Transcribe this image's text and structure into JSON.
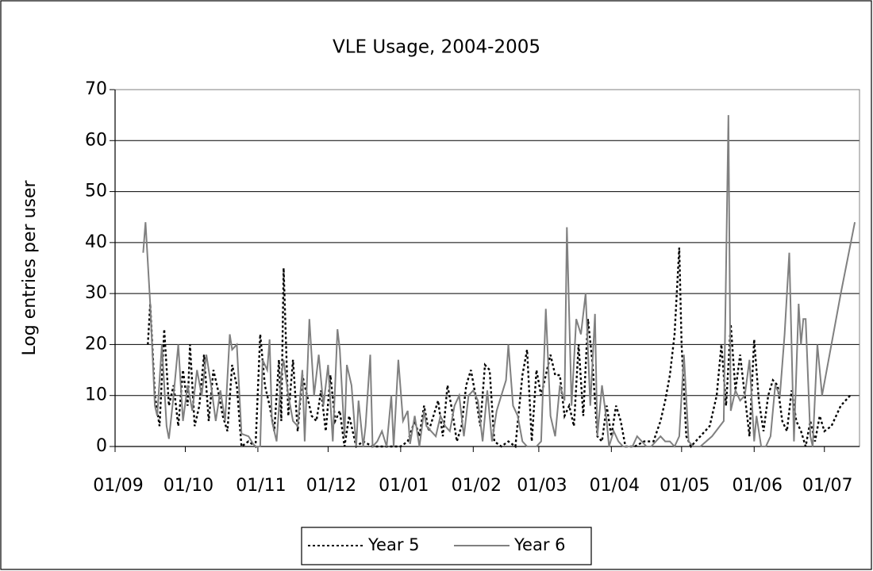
{
  "chart_data": {
    "type": "line",
    "title": "VLE Usage, 2004-2005",
    "y_label": "Log entries per user",
    "xlim": [
      "01/09",
      "16/07"
    ],
    "xticks": [
      "01/09",
      "01/10",
      "01/11",
      "01/12",
      "01/01",
      "01/02",
      "01/03",
      "01/04",
      "01/05",
      "01/06",
      "01/07"
    ],
    "ylim": [
      0,
      70
    ],
    "yticks": [
      0,
      10,
      20,
      30,
      40,
      50,
      60,
      70
    ],
    "grid": true,
    "legend": "bottom",
    "series": [
      {
        "name": "Year 5",
        "color": "#000000",
        "dash": "dotted",
        "x": [
          "15/09",
          "16/09",
          "18/09",
          "20/09",
          "22/09",
          "24/09",
          "26/09",
          "28/09",
          "30/09",
          "02/10",
          "03/10",
          "05/10",
          "07/10",
          "09/10",
          "11/10",
          "13/10",
          "15/10",
          "17/10",
          "19/10",
          "21/10",
          "23/10",
          "25/10",
          "28/10",
          "31/10",
          "02/11",
          "04/11",
          "06/11",
          "08/11",
          "10/11",
          "11/11",
          "12/11",
          "14/11",
          "16/11",
          "18/11",
          "20/11",
          "22/11",
          "24/11",
          "26/11",
          "28/11",
          "30/11",
          "02/12",
          "04/12",
          "06/12",
          "08/12",
          "10/12",
          "13/12",
          "16/12",
          "20/12",
          "24/12",
          "28/12",
          "01/01",
          "04/01",
          "07/01",
          "09/01",
          "11/01",
          "13/01",
          "15/01",
          "17/01",
          "19/01",
          "21/01",
          "23/01",
          "25/01",
          "27/01",
          "29/01",
          "31/01",
          "02/02",
          "04/02",
          "06/02",
          "08/02",
          "10/02",
          "13/02",
          "16/02",
          "19/02",
          "22/02",
          "24/02",
          "26/02",
          "28/02",
          "02/03",
          "04/03",
          "06/03",
          "08/03",
          "10/03",
          "12/03",
          "14/03",
          "16/03",
          "18/03",
          "20/03",
          "22/03",
          "24/03",
          "26/03",
          "28/03",
          "30/03",
          "01/04",
          "03/04",
          "05/04",
          "07/04",
          "11/04",
          "15/04",
          "19/04",
          "22/04",
          "24/04",
          "26/04",
          "28/04",
          "30/04",
          "01/05",
          "03/05",
          "05/05",
          "09/05",
          "13/05",
          "16/05",
          "18/05",
          "20/05",
          "22/05",
          "24/05",
          "26/05",
          "28/05",
          "30/05",
          "01/06",
          "03/06",
          "05/06",
          "07/06",
          "09/06",
          "11/06",
          "13/06",
          "15/06",
          "17/06",
          "19/06",
          "21/06",
          "23/06",
          "25/06",
          "27/06",
          "29/06",
          "01/07",
          "04/07",
          "08/07",
          "12/07"
        ],
        "values": [
          20,
          28,
          10,
          4,
          23,
          8,
          12,
          4,
          15,
          8,
          20,
          4,
          8,
          18,
          5,
          15,
          11,
          6,
          3,
          16,
          12,
          0,
          1,
          0,
          22,
          12,
          8,
          3,
          17,
          5,
          35,
          6,
          17,
          3,
          14,
          10,
          6,
          5,
          11,
          3,
          14,
          5,
          7,
          0,
          6,
          0,
          1,
          0,
          0,
          0,
          0,
          1,
          5,
          2,
          8,
          3,
          6,
          9,
          2,
          12,
          7,
          1,
          4,
          12,
          15,
          10,
          4,
          16,
          15,
          1,
          0,
          1,
          0,
          14,
          19,
          1,
          15,
          10,
          14,
          18,
          14,
          14,
          6,
          8,
          4,
          20,
          6,
          25,
          16,
          2,
          1,
          8,
          2,
          8,
          5,
          0,
          0,
          1,
          1,
          5,
          9,
          14,
          22,
          39,
          20,
          2,
          0,
          2,
          4,
          10,
          20,
          8,
          24,
          11,
          18,
          10,
          2,
          21,
          9,
          3,
          10,
          13,
          12,
          5,
          3,
          11,
          5,
          3,
          0,
          5,
          1,
          6,
          3,
          4,
          8,
          10
        ]
      },
      {
        "name": "Year 6",
        "color": "#808080",
        "dash": "solid",
        "x": [
          "13/09",
          "14/09",
          "16/09",
          "18/09",
          "19/09",
          "21/09",
          "23/09",
          "24/09",
          "26/09",
          "28/09",
          "30/09",
          "02/10",
          "04/10",
          "06/10",
          "08/10",
          "10/10",
          "12/10",
          "14/10",
          "16/10",
          "18/10",
          "20/10",
          "21/10",
          "23/10",
          "25/10",
          "28/10",
          "30/10",
          "31/10",
          "02/11",
          "03/11",
          "05/11",
          "06/11",
          "07/11",
          "09/11",
          "11/11",
          "12/11",
          "14/11",
          "16/11",
          "18/11",
          "20/11",
          "21/11",
          "23/11",
          "25/11",
          "27/11",
          "29/11",
          "01/12",
          "03/12",
          "05/12",
          "06/12",
          "08/12",
          "09/12",
          "11/12",
          "13/12",
          "14/12",
          "16/12",
          "17/12",
          "19/12",
          "20/12",
          "22/12",
          "24/12",
          "26/12",
          "28/12",
          "29/12",
          "31/12",
          "02/01",
          "04/01",
          "05/01",
          "07/01",
          "09/01",
          "11/01",
          "12/01",
          "14/01",
          "16/01",
          "18/01",
          "20/01",
          "22/01",
          "24/01",
          "26/01",
          "28/01",
          "30/01",
          "01/02",
          "03/02",
          "05/02",
          "07/02",
          "09/02",
          "11/02",
          "13/02",
          "15/02",
          "16/02",
          "18/02",
          "20/02",
          "22/02",
          "24/02",
          "26/02",
          "28/02",
          "02/03",
          "04/03",
          "06/03",
          "08/03",
          "10/03",
          "12/03",
          "13/03",
          "15/03",
          "17/03",
          "19/03",
          "21/03",
          "23/03",
          "25/03",
          "26/03",
          "28/03",
          "30/03",
          "31/03",
          "02/04",
          "04/04",
          "06/04",
          "08/04",
          "10/04",
          "12/04",
          "14/04",
          "16/04",
          "18/04",
          "20/04",
          "22/04",
          "24/04",
          "26/04",
          "28/04",
          "30/04",
          "02/05",
          "04/05",
          "06/05",
          "09/05",
          "14/05",
          "19/05",
          "21/05",
          "22/05",
          "24/05",
          "26/05",
          "28/05",
          "30/05",
          "01/06",
          "02/06",
          "04/06",
          "06/06",
          "08/06",
          "10/06",
          "12/06",
          "14/06",
          "16/06",
          "18/06",
          "20/06",
          "21/06",
          "22/06",
          "23/06",
          "25/06",
          "26/06",
          "28/06",
          "30/06",
          "08/07",
          "14/07"
        ],
        "values": [
          38,
          44,
          28,
          8,
          6,
          20,
          4,
          1.5,
          10,
          20,
          5,
          12,
          7,
          15,
          10,
          18,
          12,
          5,
          11,
          5,
          22,
          19,
          20,
          2.5,
          2,
          0.5,
          0,
          0,
          17,
          15,
          21,
          5,
          1,
          14,
          17,
          10,
          5,
          4,
          15,
          1,
          25,
          10,
          18,
          8,
          16,
          1,
          23,
          19,
          2,
          16,
          12,
          0,
          9,
          0,
          4,
          18,
          0,
          1,
          3,
          0,
          10,
          0,
          17,
          5,
          7,
          0.5,
          6,
          0,
          7,
          4,
          3,
          2,
          6,
          4,
          3,
          8,
          10,
          2,
          10,
          11,
          9,
          1,
          11,
          1,
          7,
          10,
          13,
          20,
          8,
          6,
          1,
          0,
          0,
          0,
          1,
          27,
          6,
          2,
          12,
          9,
          43,
          8,
          25,
          22,
          30,
          8,
          26,
          2,
          12,
          5,
          0,
          3,
          1,
          0,
          0,
          0,
          2,
          1,
          0,
          0,
          1,
          2,
          1,
          1,
          0,
          2,
          18,
          1,
          0,
          0,
          2,
          5,
          65,
          7,
          11,
          9,
          10,
          17,
          1,
          6,
          0,
          0,
          2,
          12,
          10,
          22,
          38,
          1,
          28,
          20,
          25,
          25,
          2,
          0,
          20,
          10,
          30,
          44
        ]
      }
    ]
  }
}
